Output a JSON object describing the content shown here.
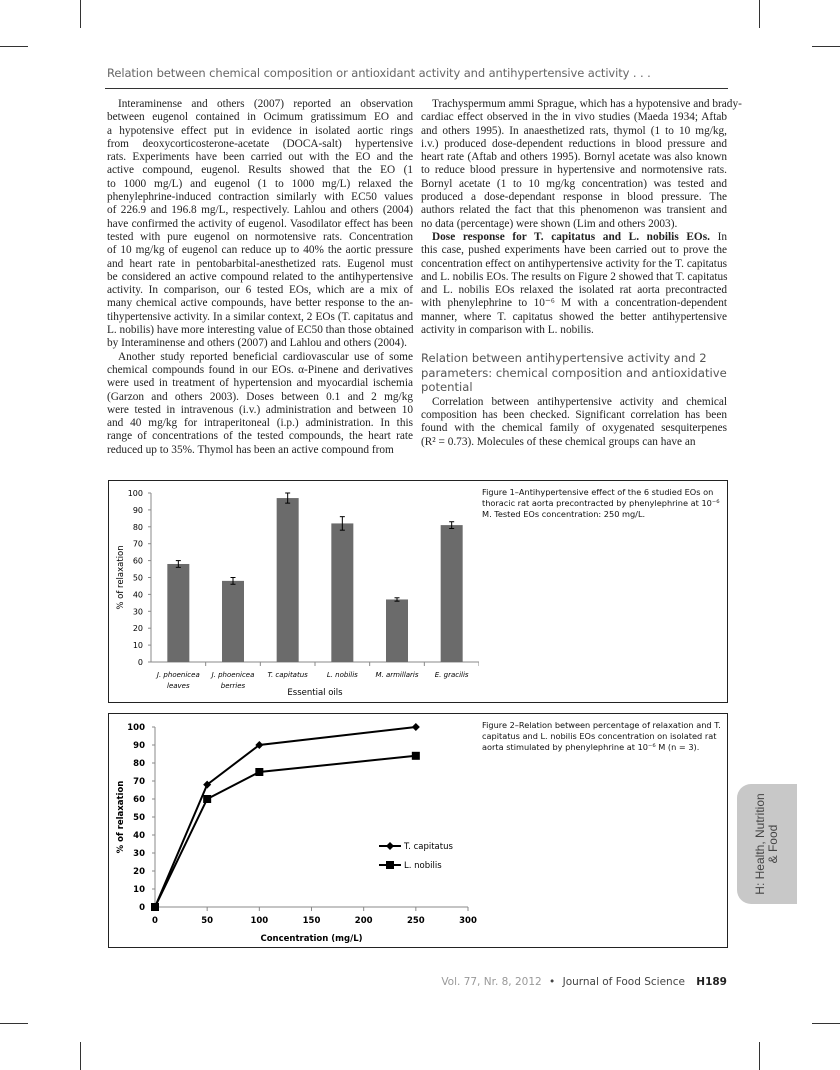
{
  "running_head": "Relation between chemical composition or antioxidant activity and antihypertensive activity . . .",
  "left_column": {
    "paragraphs": [
      [
        "Interaminense and others (2007) reported an observation",
        "between eugenol contained in Ocimum gratissimum EO and",
        "a hypotensive effect put in evidence in isolated aortic rings",
        "from deoxycorticosterone-acetate (DOCA-salt) hypertensive",
        "rats. Experiments have been carried out with the EO and the",
        "active compound, eugenol. Results showed that the EO (1",
        "to 1000 mg/L) and eugenol (1 to 1000 mg/L) relaxed the",
        "phenylephrine-induced contraction similarly with EC50 values",
        "of 226.9 and 196.8 mg/L, respectively. Lahlou and others (2004)",
        "have confirmed the activity of eugenol. Vasodilator effect has been",
        "tested with pure eugenol on normotensive rats. Concentration",
        "of 10 mg/kg of eugenol can reduce up to 40% the aortic pressure",
        "and heart rate in pentobarbital-anesthetized rats. Eugenol must",
        "be considered an active compound related to the antihypertensive",
        "activity. In comparison, our 6 tested EOs, which are a mix of",
        "many chemical active compounds, have better response to the an-",
        "tihypertensive activity. In a similar context, 2 EOs (T. capitatus and",
        "L. nobilis) have more interesting value of EC50 than those obtained",
        "by Interaminense and others (2007) and Lahlou and others (2004)."
      ],
      [
        "Another study reported beneficial cardiovascular use of some",
        "chemical compounds found in our EOs. α-Pinene and derivatives",
        "were used in treatment of hypertension and myocardial ischemia",
        "(Garzon and others 2003). Doses between 0.1 and 2 mg/kg",
        "were tested in intravenous (i.v.) administration and between 10",
        "and 40 mg/kg for intraperitoneal (i.p.) administration. In this",
        "range of concentrations of the tested compounds, the heart rate",
        "reduced up to 35%. Thymol has been an active compound from"
      ]
    ]
  },
  "right_column": {
    "paragraphs_before": [
      [
        "Trachyspermum ammi Sprague, which has a hypotensive and brady-",
        "cardiac effect observed in the in vivo studies (Maeda 1934; Aftab",
        "and others 1995). In anaesthetized rats, thymol (1 to 10 mg/kg,",
        "i.v.) produced dose-dependent reductions in blood pressure and",
        "heart rate (Aftab and others 1995). Bornyl acetate was also known",
        "to reduce blood pressure in hypertensive and normotensive rats.",
        "Bornyl acetate (1 to 10 mg/kg concentration) was tested and",
        "produced a dose-dependant response in blood pressure. The",
        "authors related the fact that this phenomenon was transient and",
        "no data (percentage) were shown (Lim and others 2003)."
      ]
    ],
    "subsection_runin": "Dose response for T. capitatus and L. nobilis EOs.",
    "subsection_lines": [
      " In",
      "this case, pushed experiments have been carried out to prove the",
      "concentration effect on antihypertensive activity for the T. capitatus",
      "and L. nobilis EOs. The results on Figure 2 showed that T. capitatus",
      "and L. nobilis EOs relaxed the isolated rat aorta precontracted",
      "with phenylephrine to 10⁻⁶ M with a concentration-dependent",
      "manner, where T. capitatus showed the better antihypertensive",
      "activity in comparison with L. nobilis."
    ],
    "heading": "Relation between antihypertensive activity and 2 parameters: chemical composition and antioxidative potential",
    "paragraphs_after": [
      [
        "Correlation between antihypertensive activity and chemical",
        "composition has been checked. Significant correlation has been",
        "found with the chemical family of oxygenated sesquiterpenes",
        "(R² = 0.73). Molecules of these chemical groups can have an"
      ]
    ]
  },
  "figure1": {
    "caption": "Figure 1–Antihypertensive effect of the 6 studied EOs on thoracic rat aorta precontracted by phenylephrine at 10⁻⁶ M. Tested EOs concentration: 250 mg/L."
  },
  "figure2": {
    "caption": "Figure 2–Relation between percentage of relaxation and T. capitatus and L. nobilis EOs concentration on isolated rat aorta stimulated by phenylephrine at 10⁻⁶ M (n = 3)."
  },
  "chart_data": [
    {
      "type": "bar",
      "categories": [
        [
          "J. phoenicea",
          "leaves"
        ],
        [
          "J. phoenicea",
          "berries"
        ],
        [
          "T. capitatus"
        ],
        [
          "L. nobilis"
        ],
        [
          "M. armillaris"
        ],
        [
          "E. gracilis"
        ]
      ],
      "values": [
        58,
        48,
        97,
        82,
        37,
        81
      ],
      "errors": [
        2,
        2,
        3,
        4,
        1,
        2
      ],
      "xlabel": "Essential oils",
      "ylabel": "% of relaxation",
      "ylim": [
        0,
        100
      ],
      "yticks": [
        0,
        10,
        20,
        30,
        40,
        50,
        60,
        70,
        80,
        90,
        100
      ],
      "grid": false,
      "bar_color": "#6b6b6b"
    },
    {
      "type": "line",
      "x": [
        0,
        50,
        100,
        250
      ],
      "series": [
        {
          "name": "T. capitatus",
          "values": [
            0,
            68,
            90,
            100
          ],
          "marker": "diamond"
        },
        {
          "name": "L. nobilis",
          "values": [
            0,
            60,
            75,
            84
          ],
          "marker": "square"
        }
      ],
      "xlabel": "Concentration (mg/L)",
      "ylabel": "% of relaxation",
      "xlim": [
        0,
        300
      ],
      "ylim": [
        0,
        100
      ],
      "xticks": [
        0,
        50,
        100,
        150,
        200,
        250,
        300
      ],
      "yticks": [
        0,
        10,
        20,
        30,
        40,
        50,
        60,
        70,
        80,
        90,
        100
      ],
      "grid": false,
      "legend": "right",
      "line_color": "#000000"
    }
  ],
  "footer": {
    "volume": "Vol. 77, Nr. 8, 2012",
    "separator": "•",
    "journal": "Journal of Food Science",
    "page": "H189"
  },
  "side_tab": {
    "label": "H: Health, Nutrition & Food",
    "color": "#c8c8c8"
  }
}
